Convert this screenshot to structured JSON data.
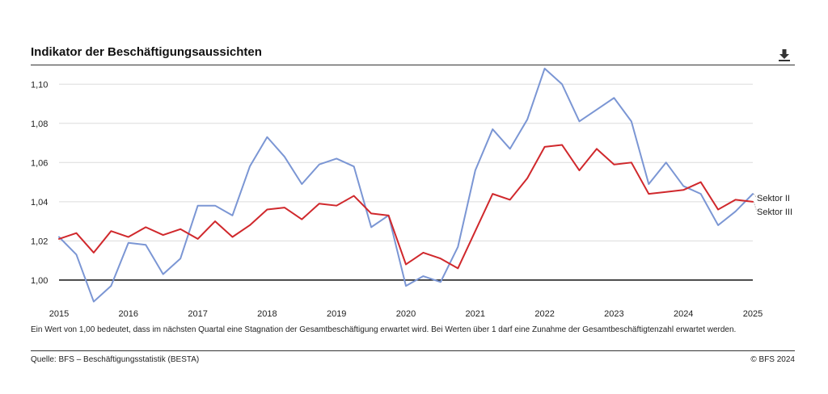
{
  "header": {
    "title": "Indikator der Beschäftigungsaussichten",
    "download_icon": "download-icon"
  },
  "footer": {
    "note": "Ein Wert von 1,00 bedeutet, dass im nächsten Quartal eine Stagnation der Gesamtbeschäftigung erwartet wird. Bei Werten über 1 darf eine Zunahme der Gesamtbeschäftigtenzahl erwartet werden.",
    "source": "Quelle: BFS – Beschäftigungsstatistik (BESTA)",
    "copyright": "© BFS 2024"
  },
  "chart_data": {
    "type": "line",
    "title": "Indikator der Beschäftigungsaussichten",
    "xlabel": "",
    "ylabel": "",
    "xlim": [
      2015,
      2025
    ],
    "ylim": [
      0.988,
      1.11
    ],
    "baseline": 1.0,
    "grid": true,
    "legend": "right, at line ends",
    "x_ticks": [
      {
        "value": 2015,
        "label": "2015"
      },
      {
        "value": 2016,
        "label": "2016"
      },
      {
        "value": 2017,
        "label": "2017"
      },
      {
        "value": 2018,
        "label": "2018"
      },
      {
        "value": 2019,
        "label": "2019"
      },
      {
        "value": 2020,
        "label": "2020"
      },
      {
        "value": 2021,
        "label": "2021"
      },
      {
        "value": 2022,
        "label": "2022"
      },
      {
        "value": 2023,
        "label": "2023"
      },
      {
        "value": 2024,
        "label": "2024"
      },
      {
        "value": 2025,
        "label": "2025"
      }
    ],
    "y_ticks": [
      {
        "value": 1.0,
        "label": "1,00"
      },
      {
        "value": 1.02,
        "label": "1,02"
      },
      {
        "value": 1.04,
        "label": "1,04"
      },
      {
        "value": 1.06,
        "label": "1,06"
      },
      {
        "value": 1.08,
        "label": "1,08"
      },
      {
        "value": 1.1,
        "label": "1,10"
      }
    ],
    "x": [
      2015.0,
      2015.25,
      2015.5,
      2015.75,
      2016.0,
      2016.25,
      2016.5,
      2016.75,
      2017.0,
      2017.25,
      2017.5,
      2017.75,
      2018.0,
      2018.25,
      2018.5,
      2018.75,
      2019.0,
      2019.25,
      2019.5,
      2019.75,
      2020.0,
      2020.25,
      2020.5,
      2020.75,
      2021.0,
      2021.25,
      2021.5,
      2021.75,
      2022.0,
      2022.25,
      2022.5,
      2022.75,
      2023.0,
      2023.25,
      2023.5,
      2023.75,
      2024.0,
      2024.25,
      2024.5,
      2024.75,
      2025.0
    ],
    "series": [
      {
        "name": "Sektor II",
        "color": "#7b96d4",
        "values": [
          1.022,
          1.013,
          0.989,
          0.997,
          1.019,
          1.018,
          1.003,
          1.011,
          1.038,
          1.038,
          1.033,
          1.058,
          1.073,
          1.063,
          1.049,
          1.059,
          1.062,
          1.058,
          1.027,
          1.033,
          0.997,
          1.002,
          0.999,
          1.017,
          1.056,
          1.077,
          1.067,
          1.082,
          1.108,
          1.1,
          1.081,
          1.087,
          1.093,
          1.081,
          1.049,
          1.06,
          1.048,
          1.044,
          1.028,
          1.035,
          1.044
        ]
      },
      {
        "name": "Sektor III",
        "color": "#d0282c",
        "values": [
          1.021,
          1.024,
          1.014,
          1.025,
          1.022,
          1.027,
          1.023,
          1.026,
          1.021,
          1.03,
          1.022,
          1.028,
          1.036,
          1.037,
          1.031,
          1.039,
          1.038,
          1.043,
          1.034,
          1.033,
          1.008,
          1.014,
          1.011,
          1.006,
          1.025,
          1.044,
          1.041,
          1.052,
          1.068,
          1.069,
          1.056,
          1.067,
          1.059,
          1.06,
          1.044,
          1.045,
          1.046,
          1.05,
          1.036,
          1.041,
          1.04
        ]
      }
    ]
  }
}
